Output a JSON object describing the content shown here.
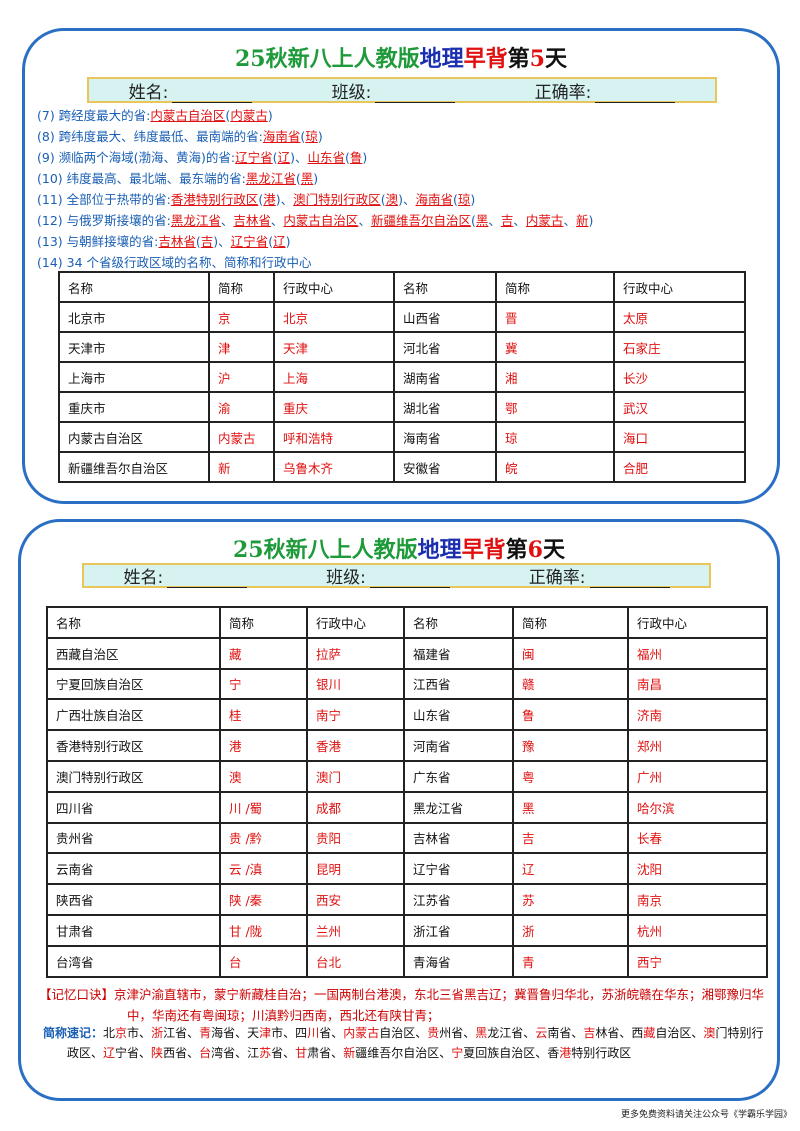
{
  "cards": [
    {
      "title": [
        "25秋新八上人教版",
        "地理",
        "早背",
        "第",
        "5",
        "天"
      ],
      "fields": [
        "姓名:",
        "班级:",
        "正确率:"
      ],
      "items": [
        {
          "parts": [
            "(7) 跨经度最大的省:",
            "内蒙古自治区",
            "(",
            "内蒙古",
            ")"
          ]
        },
        {
          "parts": [
            "(8) 跨纬度最大、纬度最低、最南端的省:",
            "海南省",
            "(",
            "琼",
            ")"
          ]
        },
        {
          "parts": [
            "(9) 濒临两个海域(渤海、黄海)的省:",
            "辽宁省",
            "(",
            "辽",
            ")、",
            "山东省",
            "(",
            "鲁",
            ")"
          ]
        },
        {
          "parts": [
            "(10) 纬度最高、最北端、最东端的省:",
            "黑龙江省",
            "(",
            "黑",
            ")"
          ]
        },
        {
          "parts": [
            "(11) 全部位于热带的省:",
            "香港特别行政区",
            "(",
            "港",
            ")、",
            "澳门特别行政区",
            "(",
            "澳",
            ")、",
            "海南省",
            "(",
            "琼",
            ")"
          ]
        },
        {
          "parts": [
            "(12) 与俄罗斯接壤的省:",
            "黑龙江省",
            "、",
            "吉林省",
            "、",
            "内蒙古自治区",
            "、",
            "新疆维吾尔自治区",
            "(",
            "黑",
            "、",
            "吉",
            "、",
            "内蒙古",
            "、",
            "新",
            ")"
          ]
        },
        {
          "parts": [
            "(13) 与朝鲜接壤的省:",
            "吉林省",
            "(",
            "吉",
            ")、",
            "辽宁省",
            "(",
            "辽",
            ")"
          ]
        },
        {
          "parts": [
            "(14) 34 个省级行政区域的名称、简称和行政中心"
          ]
        }
      ],
      "table": {
        "header": [
          "名称",
          "简称",
          "行政中心",
          "名称",
          "简称",
          "行政中心"
        ],
        "rows": [
          [
            "北京市",
            "京",
            "北京",
            "山西省",
            "晋",
            "太原"
          ],
          [
            "天津市",
            "津",
            "天津",
            "河北省",
            "冀",
            "石家庄"
          ],
          [
            "上海市",
            "沪",
            "上海",
            "湖南省",
            "湘",
            "长沙"
          ],
          [
            "重庆市",
            "渝",
            "重庆",
            "湖北省",
            "鄂",
            "武汉"
          ],
          [
            "内蒙古自治区",
            "内蒙古",
            "呼和浩特",
            "海南省",
            "琼",
            "海口"
          ],
          [
            "新疆维吾尔自治区",
            "新",
            "乌鲁木齐",
            "安徽省",
            "皖",
            "合肥"
          ]
        ]
      }
    },
    {
      "title": [
        "25秋新八上人教版",
        "地理",
        "早背",
        "第",
        "6",
        "天"
      ],
      "fields": [
        "姓名:",
        "班级:",
        "正确率:"
      ],
      "table": {
        "header": [
          "名称",
          "简称",
          "行政中心",
          "名称",
          "简称",
          "行政中心"
        ],
        "rows": [
          [
            "西藏自治区",
            "藏",
            "拉萨",
            "福建省",
            "闽",
            "福州"
          ],
          [
            "宁夏回族自治区",
            "宁",
            "银川",
            "江西省",
            "赣",
            "南昌"
          ],
          [
            "广西壮族自治区",
            "桂",
            "南宁",
            "山东省",
            "鲁",
            "济南"
          ],
          [
            "香港特别行政区",
            "港",
            "香港",
            "河南省",
            "豫",
            "郑州"
          ],
          [
            "澳门特别行政区",
            "澳",
            "澳门",
            "广东省",
            "粤",
            "广州"
          ],
          [
            "四川省",
            "川 /蜀",
            "成都",
            "黑龙江省",
            "黑",
            "哈尔滨"
          ],
          [
            "贵州省",
            "贵 /黔",
            "贵阳",
            "吉林省",
            "吉",
            "长春"
          ],
          [
            "云南省",
            "云 /滇",
            "昆明",
            "辽宁省",
            "辽",
            "沈阳"
          ],
          [
            "陕西省",
            "陕 /秦",
            "西安",
            "江苏省",
            "苏",
            "南京"
          ],
          [
            "甘肃省",
            "甘 /陇",
            "兰州",
            "浙江省",
            "浙",
            "杭州"
          ],
          [
            "台湾省",
            "台",
            "台北",
            "青海省",
            "青",
            "西宁"
          ]
        ]
      },
      "mnemonic": {
        "label": "【记忆口诀】",
        "text": "京津沪渝直辖市，蒙宁新藏桂自治；一国两制台港澳，东北三省黑吉辽；冀晋鲁归华北，苏浙皖赣在华东；湘鄂豫归华中，华南还有粤闽琼；川滇黔归西南，西北还有陕甘青；"
      },
      "shorthand": {
        "label": "简称速记：",
        "entries": [
          {
            "text": "北京市、",
            "hl": "京"
          },
          {
            "text": "浙江省、",
            "hl": "浙"
          },
          {
            "text": "青海省、",
            "hl": "青"
          },
          {
            "text": "天津市、",
            "hl": "津"
          },
          {
            "text": "四川省、",
            "hl": "川"
          },
          {
            "text": "内蒙古自治区、",
            "hl": "内蒙古"
          },
          {
            "text": "贵州省、",
            "hl": "贵"
          },
          {
            "text": "黑龙江省、",
            "hl": "黑"
          },
          {
            "text": "云南省、",
            "hl": "云"
          },
          {
            "text": "吉林省、",
            "hl": "吉"
          },
          {
            "text": "西藏自治区、",
            "hl": "藏"
          },
          {
            "text": "澳门特别行政区、",
            "hl": "澳"
          },
          {
            "text": "辽宁省、",
            "hl": "辽"
          },
          {
            "text": "陕西省、",
            "hl": "陕"
          },
          {
            "text": "台湾省、",
            "hl": "台"
          },
          {
            "text": "江苏省、",
            "hl": "苏"
          },
          {
            "text": "甘肃省、",
            "hl": "甘"
          },
          {
            "text": "新疆维吾尔自治区、",
            "hl": "新"
          },
          {
            "text": "宁夏回族自治区、",
            "hl": "宁"
          },
          {
            "text": "香港特别行政区",
            "hl": "港"
          }
        ]
      }
    }
  ],
  "footer": "更多免费资料请关注公众号《学霸乐学园》"
}
